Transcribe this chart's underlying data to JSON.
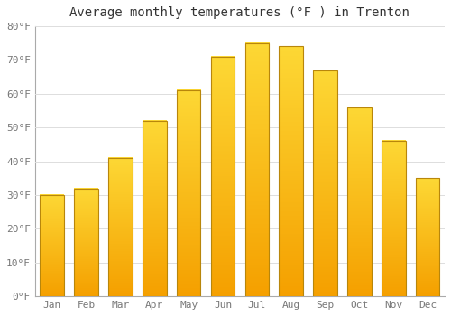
{
  "title": "Average monthly temperatures (°F ) in Trenton",
  "months": [
    "Jan",
    "Feb",
    "Mar",
    "Apr",
    "May",
    "Jun",
    "Jul",
    "Aug",
    "Sep",
    "Oct",
    "Nov",
    "Dec"
  ],
  "values": [
    30,
    32,
    41,
    52,
    61,
    71,
    75,
    74,
    67,
    56,
    46,
    35
  ],
  "bar_color_top": "#FDD835",
  "bar_color_bottom": "#F5A000",
  "bar_edge_color": "#B8860B",
  "background_color": "#FFFFFF",
  "plot_bg_color": "#FFFFFF",
  "grid_color": "#DDDDDD",
  "ylim": [
    0,
    80
  ],
  "yticks": [
    0,
    10,
    20,
    30,
    40,
    50,
    60,
    70,
    80
  ],
  "ytick_labels": [
    "0°F",
    "10°F",
    "20°F",
    "30°F",
    "40°F",
    "50°F",
    "60°F",
    "70°F",
    "80°F"
  ],
  "title_fontsize": 10,
  "tick_fontsize": 8,
  "tick_color": "#777777",
  "spine_color": "#AAAAAA",
  "bar_width": 0.7
}
